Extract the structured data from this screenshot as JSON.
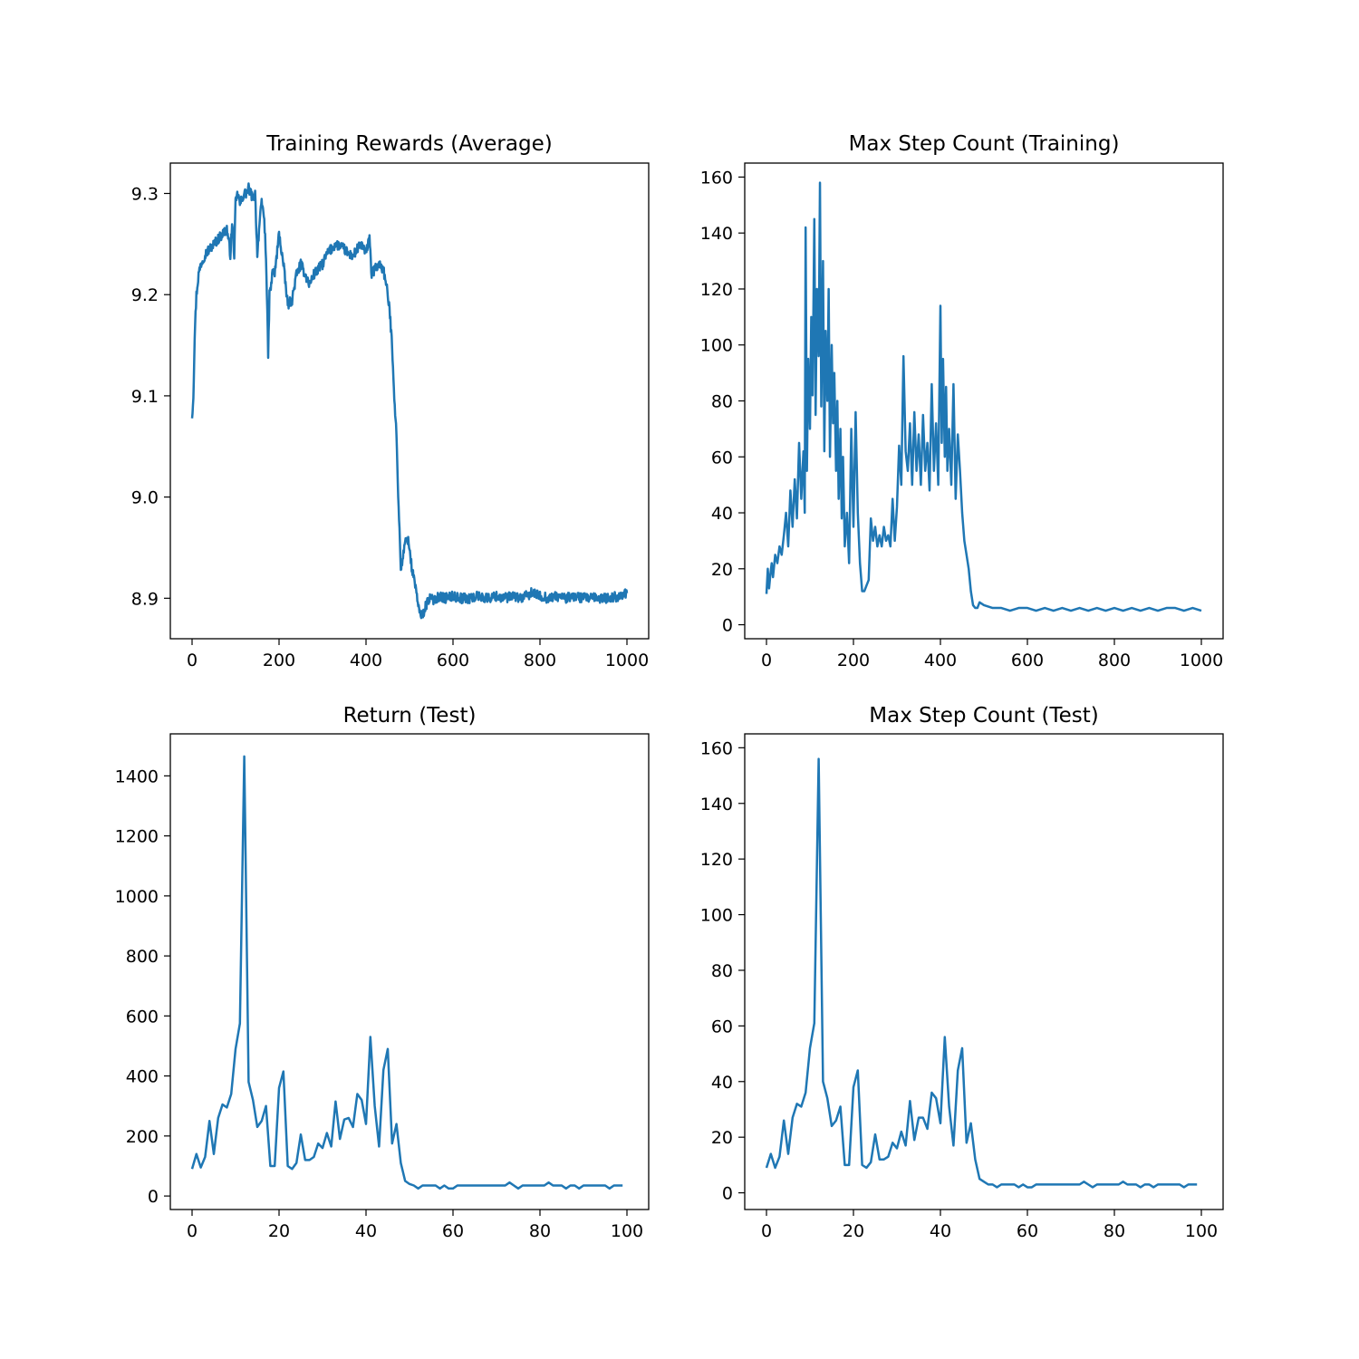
{
  "chart_data": [
    {
      "type": "line",
      "title": "Training Rewards (Average)",
      "xlabel": "",
      "ylabel": "",
      "xlim": [
        -50,
        1050
      ],
      "ylim": [
        8.86,
        9.33
      ],
      "xticks": [
        0,
        200,
        400,
        600,
        800,
        1000
      ],
      "yticks": [
        8.9,
        9.0,
        9.1,
        9.2,
        9.3
      ],
      "xtick_labels": [
        "0",
        "200",
        "400",
        "600",
        "800",
        "1000"
      ],
      "ytick_labels": [
        "8.9",
        "9.0",
        "9.1",
        "9.2",
        "9.3"
      ],
      "grid": false,
      "color": "#1f77b4",
      "noise": 0.005,
      "x": [
        0,
        3,
        6,
        10,
        15,
        20,
        30,
        40,
        50,
        60,
        70,
        80,
        85,
        88,
        92,
        97,
        100,
        105,
        110,
        115,
        120,
        125,
        130,
        135,
        140,
        145,
        150,
        155,
        160,
        165,
        170,
        175,
        178,
        182,
        186,
        190,
        195,
        200,
        205,
        210,
        215,
        220,
        230,
        240,
        250,
        260,
        270,
        280,
        290,
        300,
        310,
        320,
        330,
        340,
        350,
        360,
        370,
        380,
        390,
        400,
        408,
        412,
        420,
        430,
        440,
        450,
        455,
        460,
        465,
        470,
        475,
        480,
        485,
        490,
        495,
        500,
        505,
        510,
        515,
        520,
        525,
        530,
        535,
        540,
        545,
        550,
        560,
        570,
        580,
        600,
        620,
        640,
        660,
        680,
        700,
        720,
        740,
        760,
        780,
        800,
        820,
        840,
        860,
        880,
        900,
        920,
        940,
        960,
        980,
        1000
      ],
      "y": [
        9.08,
        9.1,
        9.16,
        9.2,
        9.22,
        9.23,
        9.24,
        9.245,
        9.25,
        9.255,
        9.26,
        9.265,
        9.25,
        9.24,
        9.27,
        9.24,
        9.29,
        9.3,
        9.29,
        9.295,
        9.3,
        9.3,
        9.305,
        9.3,
        9.295,
        9.3,
        9.24,
        9.27,
        9.29,
        9.28,
        9.24,
        9.14,
        9.2,
        9.21,
        9.225,
        9.22,
        9.24,
        9.26,
        9.245,
        9.23,
        9.21,
        9.19,
        9.195,
        9.22,
        9.23,
        9.22,
        9.21,
        9.22,
        9.225,
        9.23,
        9.24,
        9.245,
        9.25,
        9.248,
        9.245,
        9.24,
        9.238,
        9.245,
        9.25,
        9.24,
        9.26,
        9.22,
        9.225,
        9.23,
        9.225,
        9.2,
        9.18,
        9.15,
        9.1,
        9.06,
        8.99,
        8.93,
        8.94,
        8.955,
        8.96,
        8.95,
        8.93,
        8.92,
        8.91,
        8.89,
        8.885,
        8.883,
        8.89,
        8.895,
        8.9,
        8.898,
        8.9,
        8.902,
        8.9,
        8.902,
        8.9,
        8.9,
        8.902,
        8.9,
        8.902,
        8.9,
        8.902,
        8.9,
        8.905,
        8.902,
        8.9,
        8.902,
        8.9,
        8.902,
        8.9,
        8.9,
        8.9,
        8.9,
        8.902,
        8.905
      ]
    },
    {
      "type": "line",
      "title": "Max Step Count (Training)",
      "xlabel": "",
      "ylabel": "",
      "xlim": [
        -50,
        1050
      ],
      "ylim": [
        -5,
        165
      ],
      "xticks": [
        0,
        200,
        400,
        600,
        800,
        1000
      ],
      "yticks": [
        0,
        20,
        40,
        60,
        80,
        100,
        120,
        140,
        160
      ],
      "xtick_labels": [
        "0",
        "200",
        "400",
        "600",
        "800",
        "1000"
      ],
      "ytick_labels": [
        "0",
        "20",
        "40",
        "60",
        "80",
        "100",
        "120",
        "140",
        "160"
      ],
      "grid": false,
      "color": "#1f77b4",
      "x": [
        0,
        3,
        6,
        9,
        12,
        15,
        20,
        25,
        30,
        35,
        40,
        45,
        50,
        55,
        60,
        65,
        70,
        75,
        80,
        85,
        88,
        90,
        93,
        96,
        100,
        103,
        106,
        110,
        113,
        116,
        120,
        123,
        126,
        130,
        133,
        136,
        140,
        143,
        146,
        150,
        153,
        156,
        160,
        163,
        166,
        170,
        173,
        176,
        180,
        185,
        190,
        195,
        200,
        205,
        210,
        215,
        220,
        225,
        230,
        235,
        240,
        245,
        250,
        255,
        260,
        265,
        270,
        275,
        280,
        285,
        290,
        295,
        300,
        305,
        310,
        315,
        320,
        325,
        330,
        335,
        340,
        345,
        350,
        355,
        360,
        365,
        370,
        375,
        380,
        385,
        390,
        395,
        400,
        403,
        406,
        410,
        413,
        416,
        420,
        425,
        430,
        435,
        440,
        445,
        450,
        455,
        460,
        465,
        470,
        475,
        480,
        485,
        490,
        500,
        520,
        540,
        560,
        580,
        600,
        620,
        640,
        660,
        680,
        700,
        720,
        740,
        760,
        780,
        800,
        820,
        840,
        860,
        880,
        900,
        920,
        940,
        960,
        980,
        1000
      ],
      "y": [
        11,
        20,
        13,
        18,
        22,
        17,
        25,
        22,
        28,
        25,
        32,
        40,
        28,
        48,
        35,
        52,
        38,
        65,
        45,
        62,
        40,
        142,
        55,
        95,
        70,
        110,
        82,
        145,
        75,
        120,
        96,
        158,
        78,
        130,
        62,
        105,
        80,
        120,
        60,
        100,
        72,
        90,
        55,
        80,
        45,
        70,
        38,
        60,
        28,
        40,
        22,
        70,
        35,
        76,
        40,
        22,
        12,
        12,
        14,
        16,
        38,
        30,
        35,
        28,
        32,
        28,
        35,
        30,
        32,
        28,
        45,
        30,
        42,
        64,
        50,
        96,
        62,
        55,
        72,
        50,
        76,
        55,
        68,
        50,
        75,
        55,
        65,
        48,
        86,
        55,
        72,
        50,
        114,
        65,
        95,
        60,
        85,
        55,
        70,
        50,
        86,
        45,
        68,
        55,
        40,
        30,
        25,
        20,
        12,
        7,
        6,
        6,
        8,
        7,
        6,
        6,
        5,
        6,
        6,
        5,
        6,
        5,
        6,
        5,
        6,
        5,
        6,
        5,
        6,
        5,
        6,
        5,
        6,
        5,
        6,
        6,
        5,
        6,
        5
      ]
    },
    {
      "type": "line",
      "title": "Return (Test)",
      "xlabel": "",
      "ylabel": "",
      "xlim": [
        -5,
        105
      ],
      "ylim": [
        -45,
        1540
      ],
      "xticks": [
        0,
        20,
        40,
        60,
        80,
        100
      ],
      "yticks": [
        0,
        200,
        400,
        600,
        800,
        1000,
        1200,
        1400
      ],
      "xtick_labels": [
        "0",
        "20",
        "40",
        "60",
        "80",
        "100"
      ],
      "ytick_labels": [
        "0",
        "200",
        "400",
        "600",
        "800",
        "1000",
        "1200",
        "1400"
      ],
      "grid": false,
      "color": "#1f77b4",
      "x": [
        0,
        1,
        2,
        3,
        4,
        5,
        6,
        7,
        8,
        9,
        10,
        11,
        12,
        13,
        14,
        15,
        16,
        17,
        18,
        19,
        20,
        21,
        22,
        23,
        24,
        25,
        26,
        27,
        28,
        29,
        30,
        31,
        32,
        33,
        34,
        35,
        36,
        37,
        38,
        39,
        40,
        41,
        42,
        43,
        44,
        45,
        46,
        47,
        48,
        49,
        50,
        51,
        52,
        53,
        54,
        55,
        56,
        57,
        58,
        59,
        60,
        61,
        62,
        63,
        64,
        65,
        66,
        67,
        68,
        69,
        70,
        71,
        72,
        73,
        74,
        75,
        76,
        77,
        78,
        79,
        80,
        81,
        82,
        83,
        84,
        85,
        86,
        87,
        88,
        89,
        90,
        91,
        92,
        93,
        94,
        95,
        96,
        97,
        98,
        99
      ],
      "y": [
        90,
        140,
        95,
        130,
        250,
        140,
        260,
        305,
        295,
        340,
        490,
        575,
        1465,
        380,
        320,
        230,
        250,
        300,
        100,
        100,
        360,
        415,
        100,
        90,
        110,
        205,
        120,
        120,
        130,
        175,
        160,
        210,
        165,
        315,
        190,
        255,
        260,
        230,
        340,
        320,
        240,
        530,
        300,
        165,
        420,
        490,
        175,
        240,
        110,
        50,
        40,
        35,
        25,
        35,
        35,
        35,
        35,
        25,
        35,
        25,
        25,
        35,
        35,
        35,
        35,
        35,
        35,
        35,
        35,
        35,
        35,
        35,
        35,
        45,
        35,
        25,
        35,
        35,
        35,
        35,
        35,
        35,
        45,
        35,
        35,
        35,
        25,
        35,
        35,
        25,
        35,
        35,
        35,
        35,
        35,
        35,
        25,
        35,
        35,
        35
      ]
    },
    {
      "type": "line",
      "title": "Max Step Count (Test)",
      "xlabel": "",
      "ylabel": "",
      "xlim": [
        -5,
        105
      ],
      "ylim": [
        -6,
        165
      ],
      "xticks": [
        0,
        20,
        40,
        60,
        80,
        100
      ],
      "yticks": [
        0,
        20,
        40,
        60,
        80,
        100,
        120,
        140,
        160
      ],
      "xtick_labels": [
        "0",
        "20",
        "40",
        "60",
        "80",
        "100"
      ],
      "ytick_labels": [
        "0",
        "20",
        "40",
        "60",
        "80",
        "100",
        "120",
        "140",
        "160"
      ],
      "grid": false,
      "color": "#1f77b4",
      "x": [
        0,
        1,
        2,
        3,
        4,
        5,
        6,
        7,
        8,
        9,
        10,
        11,
        12,
        13,
        14,
        15,
        16,
        17,
        18,
        19,
        20,
        21,
        22,
        23,
        24,
        25,
        26,
        27,
        28,
        29,
        30,
        31,
        32,
        33,
        34,
        35,
        36,
        37,
        38,
        39,
        40,
        41,
        42,
        43,
        44,
        45,
        46,
        47,
        48,
        49,
        50,
        51,
        52,
        53,
        54,
        55,
        56,
        57,
        58,
        59,
        60,
        61,
        62,
        63,
        64,
        65,
        66,
        67,
        68,
        69,
        70,
        71,
        72,
        73,
        74,
        75,
        76,
        77,
        78,
        79,
        80,
        81,
        82,
        83,
        84,
        85,
        86,
        87,
        88,
        89,
        90,
        91,
        92,
        93,
        94,
        95,
        96,
        97,
        98,
        99
      ],
      "y": [
        9,
        14,
        9,
        13,
        26,
        14,
        27,
        32,
        31,
        36,
        52,
        61,
        156,
        40,
        34,
        24,
        26,
        31,
        10,
        10,
        38,
        44,
        10,
        9,
        11,
        21,
        12,
        12,
        13,
        18,
        16,
        22,
        17,
        33,
        19,
        27,
        27,
        23,
        36,
        34,
        25,
        56,
        31,
        17,
        44,
        52,
        18,
        25,
        12,
        5,
        4,
        3,
        3,
        2,
        3,
        3,
        3,
        3,
        2,
        3,
        2,
        2,
        3,
        3,
        3,
        3,
        3,
        3,
        3,
        3,
        3,
        3,
        3,
        4,
        3,
        2,
        3,
        3,
        3,
        3,
        3,
        3,
        4,
        3,
        3,
        3,
        2,
        3,
        3,
        2,
        3,
        3,
        3,
        3,
        3,
        3,
        2,
        3,
        3,
        3
      ]
    }
  ]
}
